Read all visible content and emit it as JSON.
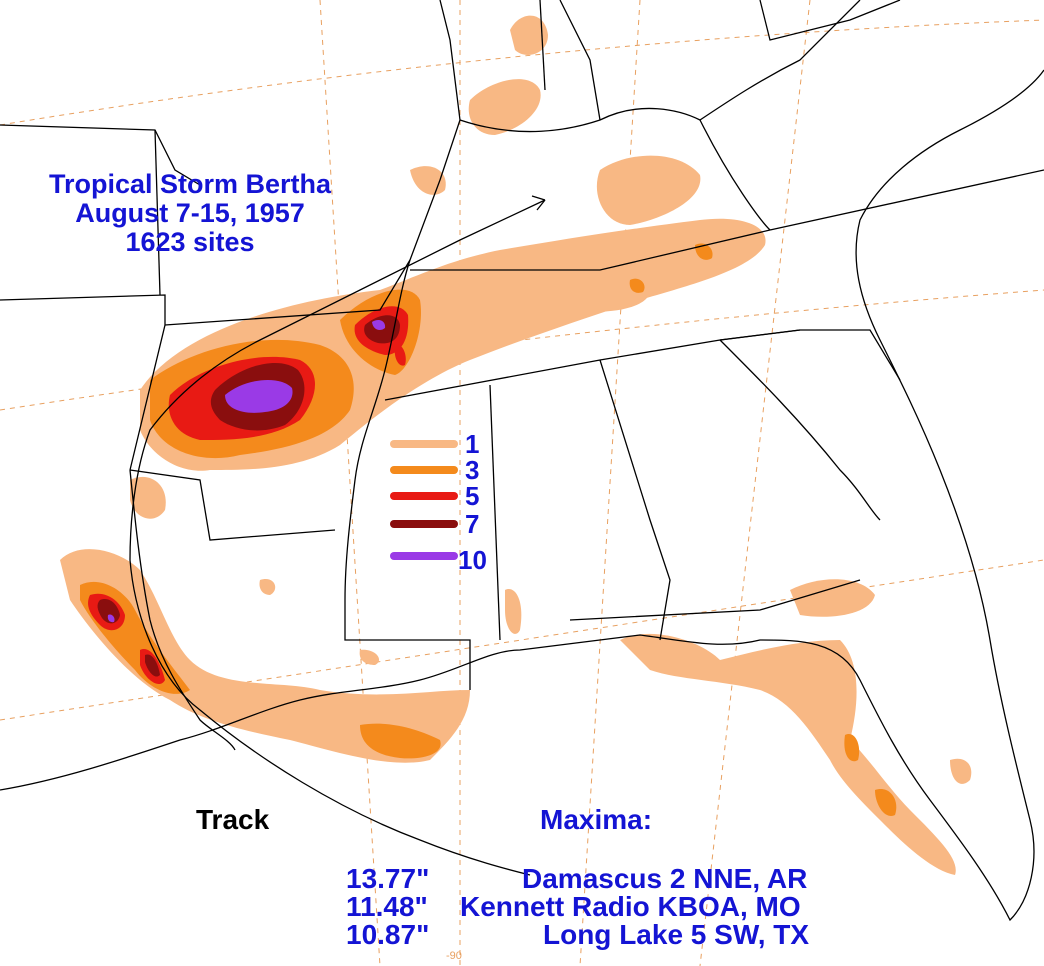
{
  "title": {
    "storm": "Tropical Storm Bertha",
    "dates": "August 7-15, 1957",
    "sites": "1623 sites"
  },
  "legend": {
    "items": [
      {
        "label": "1",
        "color": "#f8b884"
      },
      {
        "label": "3",
        "color": "#f48a1c"
      },
      {
        "label": "5",
        "color": "#e81a14"
      },
      {
        "label": "7",
        "color": "#8a0e0e"
      },
      {
        "label": "10",
        "color": "#9a3ae6"
      }
    ]
  },
  "track_label": "Track",
  "maxima": {
    "heading": "Maxima:",
    "rows": [
      {
        "value": "13.77\"",
        "location": "Damascus 2 NNE, AR"
      },
      {
        "value": "11.48\"",
        "location": "Kennett Radio KBOA, MO"
      },
      {
        "value": "10.87\"",
        "location": "Long Lake 5 SW, TX"
      }
    ]
  },
  "graticule_label": "-90",
  "colors": {
    "text": "#1414d4",
    "borders": "#000000",
    "graticule": "#e8a060"
  }
}
